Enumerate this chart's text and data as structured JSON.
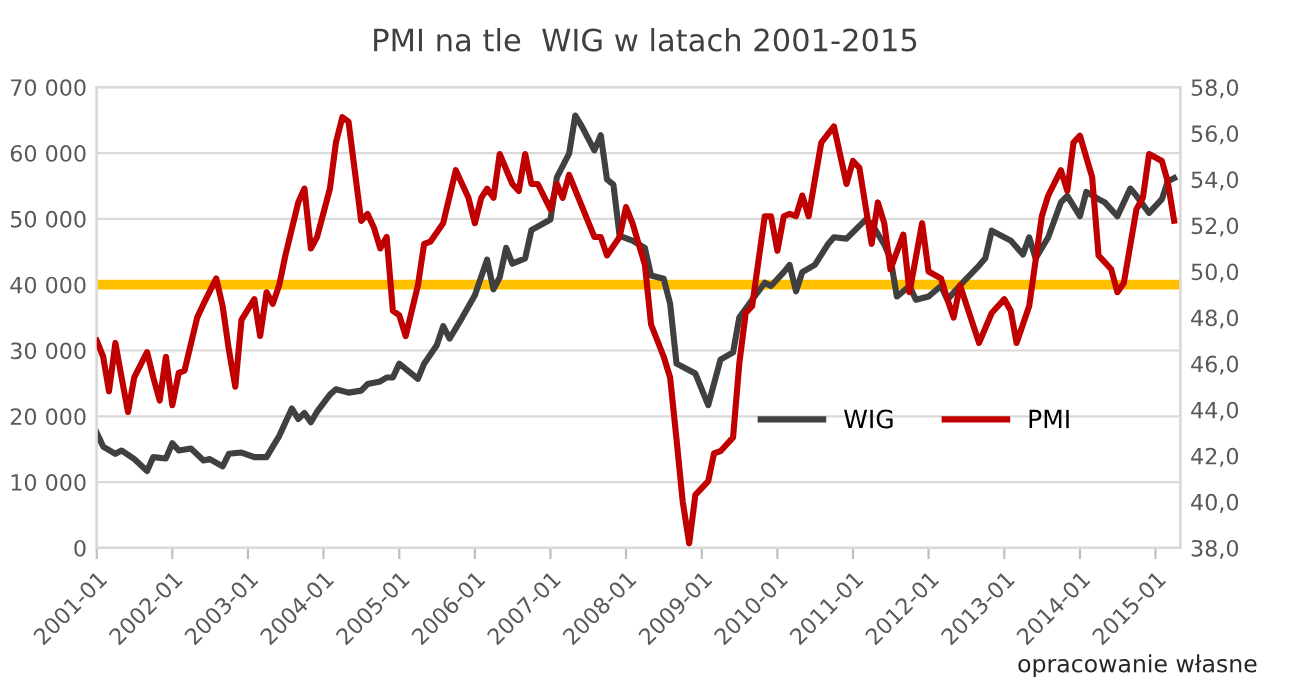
{
  "chart_data": {
    "type": "line",
    "title": "PMI na tle  WIG w latach 2001-2015",
    "annotations": [
      "opracowanie własne"
    ],
    "xlim": [
      "2001-01",
      "2015-05"
    ],
    "xticks": [
      "2001-01",
      "2002-01",
      "2003-01",
      "2004-01",
      "2005-01",
      "2006-01",
      "2007-01",
      "2008-01",
      "2009-01",
      "2010-01",
      "2011-01",
      "2012-01",
      "2013-01",
      "2014-01",
      "2015-01"
    ],
    "ylim": [
      0,
      70000
    ],
    "yticks": [
      {
        "value": 0,
        "label": "0"
      },
      {
        "value": 10000,
        "label": "10 000"
      },
      {
        "value": 20000,
        "label": "20 000"
      },
      {
        "value": 30000,
        "label": "30 000"
      },
      {
        "value": 40000,
        "label": "40 000"
      },
      {
        "value": 50000,
        "label": "50 000"
      },
      {
        "value": 60000,
        "label": "60 000"
      },
      {
        "value": 70000,
        "label": "70 000"
      }
    ],
    "y2lim": [
      38,
      58
    ],
    "y2ticks": [
      {
        "value": 38,
        "label": "38,0"
      },
      {
        "value": 40,
        "label": "40,0"
      },
      {
        "value": 42,
        "label": "42,0"
      },
      {
        "value": 44,
        "label": "44,0"
      },
      {
        "value": 46,
        "label": "46,0"
      },
      {
        "value": 48,
        "label": "48,0"
      },
      {
        "value": 50,
        "label": "50,0"
      },
      {
        "value": 52,
        "label": "52,0"
      },
      {
        "value": 54,
        "label": "54,0"
      },
      {
        "value": 56,
        "label": "56,0"
      },
      {
        "value": 58,
        "label": "58,0"
      }
    ],
    "grid": "y",
    "legend": "bottom right",
    "marker": "none",
    "line_style": "solid",
    "ref_lines": [
      {
        "axis": "y",
        "value": 40000,
        "color": "#ffc000"
      }
    ],
    "series": [
      {
        "name": "WIG",
        "color": "#404040",
        "x": [
          "2001-01",
          "2001-02",
          "2001-04",
          "2001-05",
          "2001-07",
          "2001-09",
          "2001-10",
          "2001-12",
          "2002-01",
          "2002-02",
          "2002-04",
          "2002-06",
          "2002-07",
          "2002-09",
          "2002-10",
          "2002-12",
          "2003-02",
          "2003-04",
          "2003-05",
          "2003-06",
          "2003-08",
          "2003-09",
          "2003-10",
          "2003-11",
          "2003-12",
          "2004-02",
          "2004-03",
          "2004-05",
          "2004-07",
          "2004-08",
          "2004-10",
          "2004-11",
          "2004-12",
          "2005-01",
          "2005-04",
          "2005-05",
          "2005-07",
          "2005-08",
          "2005-09",
          "2005-11",
          "2006-01",
          "2006-03",
          "2006-04",
          "2006-05",
          "2006-06",
          "2006-07",
          "2006-09",
          "2006-10",
          "2007-01",
          "2007-02",
          "2007-04",
          "2007-05",
          "2007-06",
          "2007-08",
          "2007-09",
          "2007-10",
          "2007-11",
          "2007-12",
          "2008-02",
          "2008-04",
          "2008-05",
          "2008-07",
          "2008-08",
          "2008-09",
          "2008-11",
          "2008-12",
          "2009-02",
          "2009-04",
          "2009-06",
          "2009-07",
          "2009-09",
          "2009-11",
          "2009-12",
          "2010-02",
          "2010-03",
          "2010-04",
          "2010-05",
          "2010-07",
          "2010-09",
          "2010-10",
          "2010-12",
          "2011-03",
          "2011-04",
          "2011-06",
          "2011-07",
          "2011-08",
          "2011-10",
          "2011-11",
          "2012-01",
          "2012-03",
          "2012-04",
          "2012-05",
          "2012-07",
          "2012-09",
          "2012-10",
          "2012-11",
          "2013-02",
          "2013-04",
          "2013-05",
          "2013-06",
          "2013-08",
          "2013-10",
          "2013-11",
          "2014-01",
          "2014-02",
          "2014-04",
          "2014-05",
          "2014-07",
          "2014-09",
          "2014-10",
          "2014-12",
          "2015-02",
          "2015-03",
          "2015-04"
        ],
        "values": [
          17500,
          15400,
          14300,
          14800,
          13500,
          11700,
          13800,
          13600,
          15900,
          14800,
          15100,
          13300,
          13500,
          12400,
          14300,
          14500,
          13800,
          13800,
          15400,
          17000,
          21200,
          19600,
          20500,
          19100,
          20700,
          23300,
          24100,
          23600,
          23900,
          24900,
          25300,
          25900,
          25900,
          28000,
          25700,
          28000,
          30800,
          33700,
          31800,
          35000,
          38400,
          43800,
          39300,
          41100,
          45600,
          43200,
          44000,
          48300,
          49900,
          56300,
          59900,
          65700,
          64100,
          60400,
          62700,
          56000,
          55200,
          47400,
          46700,
          45600,
          41400,
          40900,
          37100,
          28000,
          27000,
          26500,
          21700,
          28600,
          29700,
          35000,
          37700,
          40300,
          39800,
          41900,
          43000,
          39000,
          41900,
          43000,
          46100,
          47200,
          47000,
          49800,
          49300,
          46100,
          44000,
          38200,
          39800,
          37700,
          38200,
          39800,
          37700,
          38800,
          40900,
          42900,
          44000,
          48200,
          46700,
          44600,
          47200,
          44000,
          47200,
          52500,
          53500,
          50400,
          54100,
          53000,
          52500,
          50400,
          54600,
          53500,
          50900,
          53000,
          55700,
          56200
        ]
      },
      {
        "name": "PMI",
        "color": "#c00000",
        "axis": "y2",
        "x": [
          "2001-01",
          "2001-02",
          "2001-03",
          "2001-04",
          "2001-05",
          "2001-06",
          "2001-07",
          "2001-09",
          "2001-10",
          "2001-11",
          "2001-12",
          "2002-01",
          "2002-02",
          "2002-03",
          "2002-05",
          "2002-06",
          "2002-08",
          "2002-09",
          "2002-10",
          "2002-11",
          "2002-12",
          "2003-02",
          "2003-03",
          "2003-04",
          "2003-05",
          "2003-06",
          "2003-07",
          "2003-09",
          "2003-10",
          "2003-11",
          "2003-12",
          "2004-02",
          "2004-03",
          "2004-04",
          "2004-05",
          "2004-07",
          "2004-08",
          "2004-09",
          "2004-10",
          "2004-11",
          "2004-12",
          "2005-01",
          "2005-02",
          "2005-04",
          "2005-05",
          "2005-06",
          "2005-08",
          "2005-10",
          "2005-12",
          "2006-01",
          "2006-02",
          "2006-03",
          "2006-04",
          "2006-05",
          "2006-07",
          "2006-08",
          "2006-09",
          "2006-10",
          "2006-11",
          "2007-01",
          "2007-02",
          "2007-03",
          "2007-04",
          "2007-08",
          "2007-09",
          "2007-10",
          "2007-12",
          "2008-01",
          "2008-02",
          "2008-04",
          "2008-05",
          "2008-07",
          "2008-08",
          "2008-09",
          "2008-10",
          "2008-11",
          "2008-12",
          "2009-02",
          "2009-03",
          "2009-04",
          "2009-06",
          "2009-07",
          "2009-08",
          "2009-09",
          "2009-11",
          "2009-12",
          "2010-01",
          "2010-02",
          "2010-03",
          "2010-04",
          "2010-05",
          "2010-06",
          "2010-08",
          "2010-10",
          "2010-12",
          "2011-01",
          "2011-02",
          "2011-04",
          "2011-05",
          "2011-06",
          "2011-07",
          "2011-09",
          "2011-10",
          "2011-12",
          "2012-01",
          "2012-03",
          "2012-04",
          "2012-05",
          "2012-06",
          "2012-09",
          "2012-11",
          "2013-01",
          "2013-02",
          "2013-03",
          "2013-05",
          "2013-07",
          "2013-08",
          "2013-10",
          "2013-11",
          "2013-12",
          "2014-01",
          "2014-03",
          "2014-04",
          "2014-06",
          "2014-07",
          "2014-08",
          "2014-10",
          "2014-11",
          "2014-12",
          "2015-02",
          "2015-03",
          "2015-04"
        ],
        "values": [
          47.0,
          46.3,
          44.8,
          46.9,
          45.4,
          43.9,
          45.4,
          46.5,
          45.4,
          44.4,
          46.3,
          44.2,
          45.6,
          45.7,
          48.0,
          48.6,
          49.7,
          48.5,
          46.6,
          45.0,
          47.9,
          48.8,
          47.2,
          49.1,
          48.6,
          49.4,
          50.7,
          53.0,
          53.6,
          51.0,
          51.5,
          53.6,
          55.6,
          56.7,
          56.5,
          52.2,
          52.5,
          51.9,
          51.0,
          51.5,
          48.3,
          48.1,
          47.2,
          49.4,
          51.2,
          51.3,
          52.1,
          54.4,
          53.2,
          52.1,
          53.2,
          53.6,
          53.2,
          55.1,
          53.8,
          53.5,
          55.1,
          53.8,
          53.8,
          52.7,
          53.8,
          53.2,
          54.2,
          51.5,
          51.5,
          50.7,
          51.5,
          52.8,
          52.1,
          50.3,
          47.7,
          46.3,
          45.4,
          42.7,
          40.0,
          38.2,
          40.3,
          40.9,
          42.1,
          42.2,
          42.8,
          46.0,
          48.2,
          48.5,
          52.4,
          52.4,
          50.9,
          52.4,
          52.5,
          52.4,
          53.3,
          52.4,
          55.6,
          56.3,
          53.8,
          54.8,
          54.5,
          51.2,
          53.0,
          52.1,
          50.1,
          51.6,
          49.1,
          52.1,
          50.0,
          49.7,
          48.8,
          48.0,
          49.4,
          46.9,
          48.2,
          48.8,
          48.3,
          46.9,
          48.5,
          52.4,
          53.3,
          54.4,
          53.5,
          55.6,
          55.9,
          54.1,
          50.7,
          50.1,
          49.1,
          49.5,
          52.7,
          53.2,
          55.1,
          54.8,
          53.9,
          52.2
        ]
      }
    ]
  }
}
